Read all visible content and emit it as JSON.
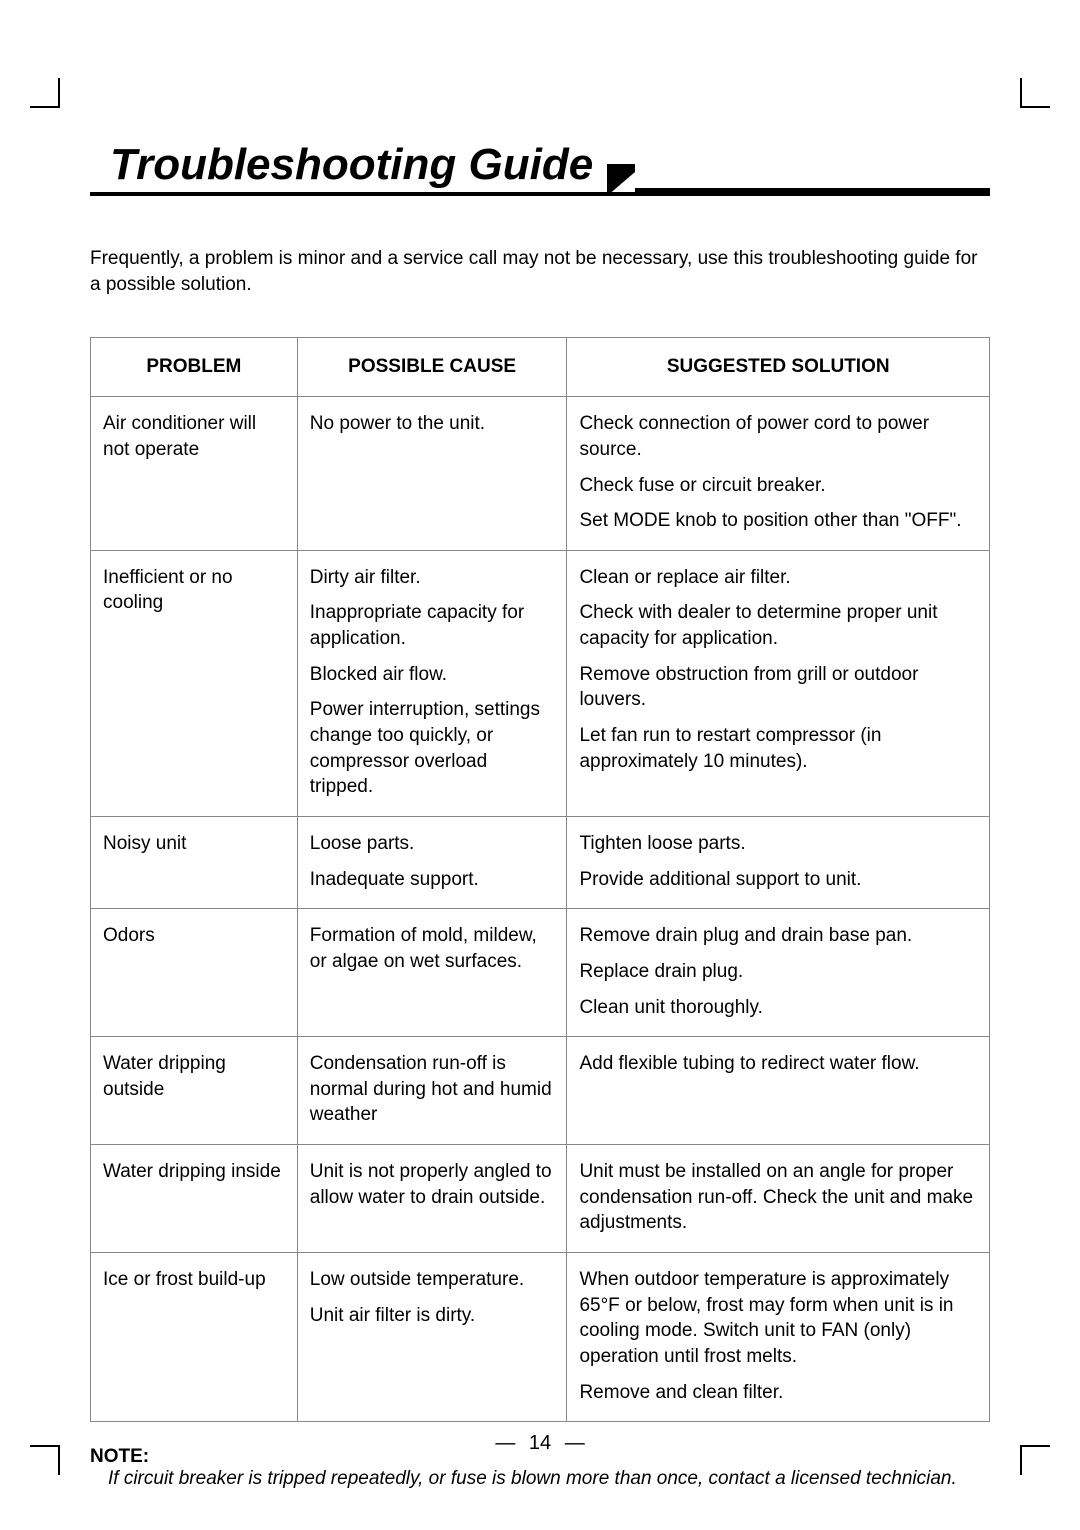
{
  "title": "Troubleshooting Guide",
  "intro": "Frequently, a problem is minor and a service call may not be necessary, use this troubleshooting guide for a possible solution.",
  "table": {
    "headers": {
      "problem": "PROBLEM",
      "cause": "POSSIBLE CAUSE",
      "solution": "SUGGESTED SOLUTION"
    },
    "rows": [
      {
        "problem": "Air conditioner will not operate",
        "causes": [
          "No power to the unit."
        ],
        "solutions": [
          "Check connection of power cord to power source.",
          "Check fuse or circuit breaker.",
          "Set MODE knob to position other than \"OFF\"."
        ]
      },
      {
        "problem": "Inefficient or no cooling",
        "causes": [
          "Dirty air filter.",
          "Inappropriate capacity for application.",
          "Blocked air flow.",
          "Power interruption, settings change too quickly, or compressor overload tripped."
        ],
        "solutions": [
          "Clean or replace  air filter.",
          "Check with dealer to determine proper unit capacity for application.",
          "Remove obstruction from grill or outdoor louvers.",
          "Let fan run to restart compressor (in approximately 10 minutes)."
        ]
      },
      {
        "problem": "Noisy unit",
        "causes": [
          "Loose parts.",
          "Inadequate support."
        ],
        "solutions": [
          "Tighten loose parts.",
          "Provide additional  support to unit."
        ]
      },
      {
        "problem": "Odors",
        "causes": [
          "Formation of mold, mildew, or algae on wet surfaces."
        ],
        "solutions": [
          "Remove drain plug and drain base pan.",
          "Replace drain plug.",
          "Clean unit thoroughly."
        ]
      },
      {
        "problem": "Water dripping outside",
        "causes": [
          "Condensation run-off is normal during hot and humid weather"
        ],
        "solutions": [
          "Add flexible tubing to redirect water flow."
        ]
      },
      {
        "problem": "Water dripping inside",
        "causes": [
          "Unit is not properly angled to allow water to drain outside."
        ],
        "solutions": [
          "Unit must be installed on an angle for proper condensation run-off. Check the unit and make adjustments."
        ]
      },
      {
        "problem": "Ice or frost build-up",
        "causes": [
          "Low outside temperature.",
          "Unit air filter is dirty."
        ],
        "solutions": [
          "When outdoor temperature is approximately 65°F or below, frost may form when unit is in cooling mode. Switch unit to FAN (only) operation until frost melts.",
          "Remove and clean filter."
        ]
      }
    ]
  },
  "note": {
    "label": "NOTE:",
    "text": "If circuit breaker is tripped repeatedly, or fuse is blown more than once, contact a licensed technician."
  },
  "page_number": "14"
}
